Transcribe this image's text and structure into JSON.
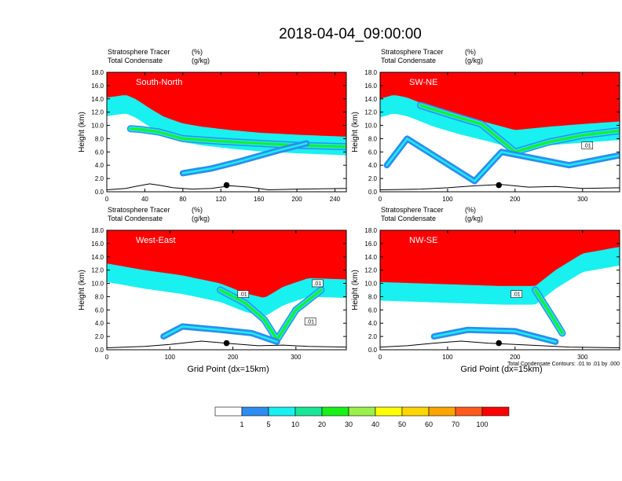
{
  "title": "2018-04-04_09:00:00",
  "colors": {
    "levels": [
      "#ffffff",
      "#2d8df0",
      "#19f0f0",
      "#19e699",
      "#19f019",
      "#9bf04b",
      "#ffff00",
      "#ffd700",
      "#ffa500",
      "#ff5a1e",
      "#ff0000"
    ],
    "contour": "#000000",
    "surface_marker": "#000000"
  },
  "chart_data": [
    {
      "type": "heatmap",
      "name": "south-north",
      "label": "South-North",
      "left_string_1": "Stratosphere Tracer",
      "left_string_2": "Total Condensate",
      "right_string_1": "(%)",
      "right_string_2": "(g/kg)",
      "ylabel": "Height (km)",
      "xlabel": "",
      "xlim": [
        0,
        252
      ],
      "ylim": [
        0,
        18
      ],
      "xticks": [
        "0",
        "40",
        "80",
        "120",
        "160",
        "200",
        "240"
      ],
      "xtick_values": [
        0,
        40,
        80,
        120,
        160,
        200,
        240
      ],
      "yticks": [
        "0.0",
        "2.0",
        "4.0",
        "6.0",
        "8.0",
        "10.0",
        "12.0",
        "14.0",
        "16.0",
        "18.0"
      ],
      "tropopause": [
        [
          0,
          14.2
        ],
        [
          10,
          14.4
        ],
        [
          20,
          14.6
        ],
        [
          30,
          14.0
        ],
        [
          45,
          12.6
        ],
        [
          60,
          11.3
        ],
        [
          80,
          10.3
        ],
        [
          100,
          9.8
        ],
        [
          130,
          9.3
        ],
        [
          160,
          8.9
        ],
        [
          200,
          8.6
        ],
        [
          252,
          8.3
        ]
      ],
      "intrusion": [
        [
          25,
          9.5
        ],
        [
          35,
          9.4
        ],
        [
          55,
          9.0
        ],
        [
          80,
          8.0
        ],
        [
          120,
          7.6
        ],
        [
          160,
          7.3
        ],
        [
          200,
          7.0
        ],
        [
          252,
          6.8
        ]
      ],
      "low_fold": [
        [
          80,
          2.8
        ],
        [
          110,
          3.5
        ],
        [
          140,
          4.6
        ],
        [
          180,
          6.2
        ],
        [
          210,
          7.3
        ]
      ],
      "terrain": [
        [
          0,
          0.3
        ],
        [
          20,
          0.5
        ],
        [
          30,
          0.8
        ],
        [
          45,
          1.2
        ],
        [
          55,
          1.0
        ],
        [
          70,
          0.6
        ],
        [
          90,
          0.4
        ],
        [
          110,
          0.5
        ],
        [
          130,
          0.9
        ],
        [
          150,
          0.7
        ],
        [
          170,
          0.3
        ],
        [
          200,
          0.4
        ],
        [
          252,
          0.5
        ]
      ],
      "marker_x": 126
    },
    {
      "type": "heatmap",
      "name": "sw-ne",
      "label": "SW-NE",
      "left_string_1": "Stratosphere Tracer",
      "left_string_2": "Total Condensate",
      "right_string_1": "(%)",
      "right_string_2": "(g/kg)",
      "ylabel": "Height (km)",
      "xlabel": "",
      "xlim": [
        0,
        355
      ],
      "ylim": [
        0,
        18
      ],
      "xticks": [
        "0",
        "100",
        "200",
        "300"
      ],
      "xtick_values": [
        0,
        100,
        200,
        300
      ],
      "yticks": [
        "0.0",
        "2.0",
        "4.0",
        "6.0",
        "8.0",
        "10.0",
        "12.0",
        "14.0",
        "16.0",
        "18.0"
      ],
      "tropopause": [
        [
          0,
          14.0
        ],
        [
          20,
          14.6
        ],
        [
          40,
          14.2
        ],
        [
          80,
          12.6
        ],
        [
          120,
          11.4
        ],
        [
          160,
          10.4
        ],
        [
          200,
          9.3
        ],
        [
          250,
          9.8
        ],
        [
          300,
          10.2
        ],
        [
          355,
          10.6
        ]
      ],
      "intrusion": [
        [
          60,
          13.0
        ],
        [
          110,
          11.4
        ],
        [
          150,
          10.2
        ],
        [
          200,
          6.0
        ],
        [
          250,
          7.5
        ],
        [
          300,
          8.5
        ],
        [
          355,
          9.2
        ]
      ],
      "low_fold": [
        [
          10,
          4.0
        ],
        [
          40,
          8.0
        ],
        [
          140,
          1.6
        ],
        [
          180,
          6.0
        ],
        [
          280,
          4.0
        ],
        [
          355,
          5.5
        ]
      ],
      "contour_labels": [
        ".01"
      ],
      "terrain": [
        [
          0,
          0.3
        ],
        [
          60,
          0.4
        ],
        [
          100,
          0.6
        ],
        [
          140,
          0.9
        ],
        [
          180,
          1.1
        ],
        [
          220,
          0.7
        ],
        [
          260,
          0.8
        ],
        [
          300,
          0.5
        ],
        [
          355,
          0.6
        ]
      ],
      "marker_x": 176
    },
    {
      "type": "heatmap",
      "name": "west-east",
      "label": "West-East",
      "left_string_1": "Stratosphere Tracer",
      "left_string_2": "Total Condensate",
      "right_string_1": "(%)",
      "right_string_2": "(g/kg)",
      "ylabel": "Height (km)",
      "xlabel": "Grid Point (dx=15km)",
      "xlim": [
        0,
        380
      ],
      "ylim": [
        0,
        18
      ],
      "xticks": [
        "0",
        "100",
        "200",
        "300"
      ],
      "xtick_values": [
        0,
        100,
        200,
        300
      ],
      "yticks": [
        "0.0",
        "2.0",
        "4.0",
        "6.0",
        "8.0",
        "10.0",
        "12.0",
        "14.0",
        "16.0",
        "18.0"
      ],
      "tropopause": [
        [
          0,
          13.0
        ],
        [
          60,
          12.0
        ],
        [
          120,
          11.2
        ],
        [
          180,
          10.0
        ],
        [
          220,
          8.5
        ],
        [
          250,
          7.8
        ],
        [
          280,
          9.5
        ],
        [
          320,
          10.8
        ],
        [
          380,
          10.6
        ]
      ],
      "intrusion": [
        [
          180,
          9.0
        ],
        [
          220,
          7.0
        ],
        [
          250,
          4.5
        ],
        [
          270,
          1.5
        ],
        [
          300,
          6.0
        ],
        [
          340,
          9.0
        ]
      ],
      "low_fold": [
        [
          90,
          2.0
        ],
        [
          120,
          3.5
        ],
        [
          180,
          3.0
        ],
        [
          230,
          2.5
        ],
        [
          270,
          1.2
        ]
      ],
      "contour_labels": [
        ".01",
        ".01",
        ".01"
      ],
      "terrain": [
        [
          0,
          0.3
        ],
        [
          60,
          0.5
        ],
        [
          100,
          0.8
        ],
        [
          150,
          1.3
        ],
        [
          200,
          0.9
        ],
        [
          240,
          0.6
        ],
        [
          280,
          0.7
        ],
        [
          320,
          0.5
        ],
        [
          380,
          0.4
        ]
      ],
      "marker_x": 190
    },
    {
      "type": "heatmap",
      "name": "nw-se",
      "label": "NW-SE",
      "left_string_1": "Stratosphere Tracer",
      "left_string_2": "Total Condensate",
      "right_string_1": "(%)",
      "right_string_2": "(g/kg)",
      "ylabel": "Height (km)",
      "xlabel": "Grid Point (dx=15km)",
      "xlim": [
        0,
        355
      ],
      "ylim": [
        0,
        18
      ],
      "xticks": [
        "0",
        "100",
        "200",
        "300"
      ],
      "xtick_values": [
        0,
        100,
        200,
        300
      ],
      "yticks": [
        "0.0",
        "2.0",
        "4.0",
        "6.0",
        "8.0",
        "10.0",
        "12.0",
        "14.0",
        "16.0",
        "18.0"
      ],
      "tropopause": [
        [
          0,
          10.2
        ],
        [
          60,
          10.0
        ],
        [
          120,
          9.8
        ],
        [
          180,
          9.6
        ],
        [
          230,
          9.6
        ],
        [
          260,
          12.0
        ],
        [
          300,
          14.5
        ],
        [
          355,
          15.5
        ]
      ],
      "intrusion": [
        [
          230,
          9.0
        ],
        [
          255,
          5.0
        ],
        [
          270,
          2.5
        ]
      ],
      "low_fold": [
        [
          80,
          2.0
        ],
        [
          130,
          3.0
        ],
        [
          200,
          2.8
        ],
        [
          260,
          1.2
        ]
      ],
      "contour_labels": [
        ".01"
      ],
      "terrain": [
        [
          0,
          0.4
        ],
        [
          40,
          0.6
        ],
        [
          80,
          1.0
        ],
        [
          120,
          1.3
        ],
        [
          160,
          1.0
        ],
        [
          200,
          0.8
        ],
        [
          240,
          0.6
        ],
        [
          280,
          0.4
        ],
        [
          355,
          0.3
        ]
      ],
      "marker_x": 176,
      "footnote": "Total Condensate Contours: .01 to .01 by .000"
    }
  ],
  "colorbar": {
    "labels": [
      "1",
      "5",
      "10",
      "20",
      "30",
      "40",
      "50",
      "60",
      "70",
      "100"
    ]
  }
}
